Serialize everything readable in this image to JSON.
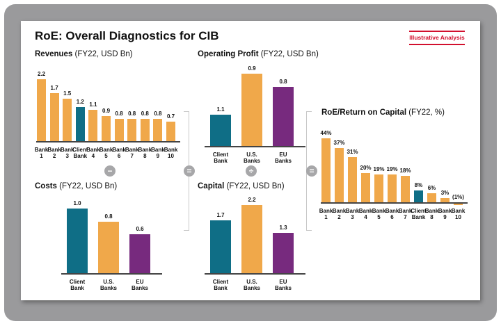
{
  "title": "RoE: Overall Diagnostics for CIB",
  "tag": "Illustrative Analysis",
  "colors": {
    "peer": "#F0A84A",
    "client": "#0F6E86",
    "eu": "#772A7E",
    "tag": "#D2102E"
  },
  "operators": {
    "minus": "−",
    "equals1": "=",
    "divide": "÷",
    "equals2": "="
  },
  "chart_data": [
    {
      "id": "revenues",
      "type": "bar",
      "title_bold": "Revenues",
      "title_rest": " (FY22, USD Bn)",
      "categories": [
        [
          "Bank",
          "1"
        ],
        [
          "Bank",
          "2"
        ],
        [
          "Bank",
          "3"
        ],
        [
          "Client",
          "Bank"
        ],
        [
          "Bank",
          "4"
        ],
        [
          "Bank",
          "5"
        ],
        [
          "Bank",
          "6"
        ],
        [
          "Bank",
          "7"
        ],
        [
          "Bank",
          "8"
        ],
        [
          "Bank",
          "9"
        ],
        [
          "Bank",
          "10"
        ]
      ],
      "values": [
        2.2,
        1.7,
        1.5,
        1.2,
        1.1,
        0.9,
        0.8,
        0.8,
        0.8,
        0.8,
        0.7
      ],
      "labels": [
        "2.2",
        "1.7",
        "1.5",
        "1.2",
        "1.1",
        "0.9",
        "0.8",
        "0.8",
        "0.8",
        "0.8",
        "0.7"
      ],
      "colors": [
        "peer",
        "peer",
        "peer",
        "client",
        "peer",
        "peer",
        "peer",
        "peer",
        "peer",
        "peer",
        "peer"
      ]
    },
    {
      "id": "costs",
      "type": "bar",
      "title_bold": "Costs",
      "title_rest": " (FY22, USD Bn)",
      "categories": [
        [
          "Client",
          "Bank"
        ],
        [
          "U.S.",
          "Banks"
        ],
        [
          "EU",
          "Banks"
        ]
      ],
      "values": [
        1.0,
        0.8,
        0.6
      ],
      "labels": [
        "1.0",
        "0.8",
        "0.6"
      ],
      "colors": [
        "client",
        "peer",
        "eu"
      ]
    },
    {
      "id": "operating-profit",
      "type": "bar",
      "title_bold": "Operating Profit",
      "title_rest": " (FY22, USD Bn)",
      "categories": [
        [
          "Client",
          "Bank"
        ],
        [
          "U.S.",
          "Banks"
        ],
        [
          "EU",
          "Banks"
        ]
      ],
      "values": [
        1.1,
        0.9,
        0.8
      ],
      "labels": [
        "1.1",
        "0.9",
        "0.8"
      ],
      "colors": [
        "client",
        "peer",
        "eu"
      ]
    },
    {
      "id": "capital",
      "type": "bar",
      "title_bold": "Capital",
      "title_rest": " (FY22, USD Bn)",
      "categories": [
        [
          "Client",
          "Bank"
        ],
        [
          "U.S.",
          "Banks"
        ],
        [
          "EU",
          "Banks"
        ]
      ],
      "values": [
        1.7,
        2.2,
        1.3
      ],
      "labels": [
        "1.7",
        "2.2",
        "1.3"
      ],
      "colors": [
        "client",
        "peer",
        "eu"
      ]
    },
    {
      "id": "roe",
      "type": "bar",
      "title_bold": "RoE/Return on Capital",
      "title_rest": " (FY22, %)",
      "categories": [
        [
          "Bank",
          "1"
        ],
        [
          "Bank",
          "2"
        ],
        [
          "Bank",
          "3"
        ],
        [
          "Bank",
          "4"
        ],
        [
          "Bank",
          "5"
        ],
        [
          "Bank",
          "6"
        ],
        [
          "Bank",
          "7"
        ],
        [
          "Client",
          "Bank"
        ],
        [
          "Bank",
          "8"
        ],
        [
          "Bank",
          "9"
        ],
        [
          "Bank",
          "10"
        ]
      ],
      "values": [
        44,
        37,
        31,
        20,
        19,
        19,
        18,
        8,
        6,
        3,
        -1
      ],
      "labels": [
        "44%",
        "37%",
        "31%",
        "20%",
        "19%",
        "19%",
        "18%",
        "8%",
        "6%",
        "3%",
        "(1%)"
      ],
      "colors": [
        "peer",
        "peer",
        "peer",
        "peer",
        "peer",
        "peer",
        "peer",
        "client",
        "peer",
        "peer",
        "peer"
      ]
    }
  ]
}
